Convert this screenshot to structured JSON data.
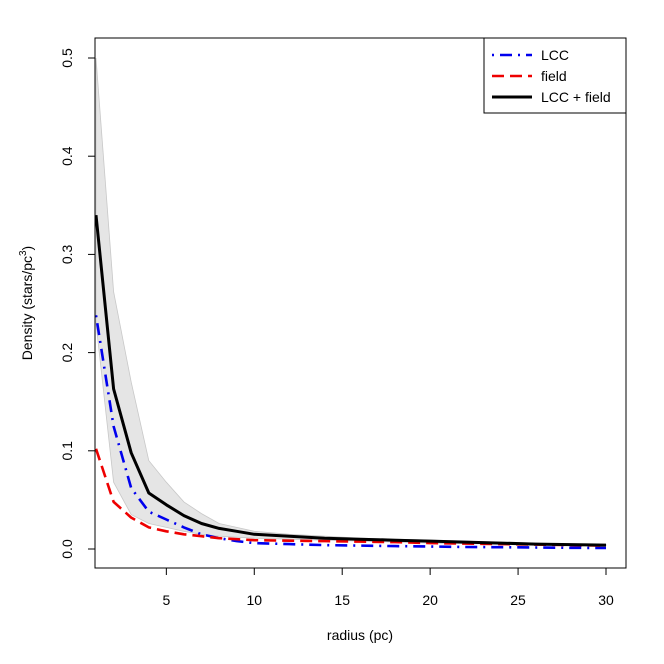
{
  "chart_data": {
    "type": "line",
    "xlabel": "radius (pc)",
    "ylabel_main": "Density (stars/pc",
    "ylabel_sup": "3",
    "ylabel_close": ")",
    "xlim": [
      1,
      30
    ],
    "ylim": [
      0,
      0.5
    ],
    "x_ticks": [
      5,
      10,
      15,
      20,
      25,
      30
    ],
    "y_ticks": [
      0.0,
      0.1,
      0.2,
      0.3,
      0.4,
      0.5
    ],
    "x_tick_labels": [
      "5",
      "10",
      "15",
      "20",
      "25",
      "30"
    ],
    "y_tick_labels": [
      "0.0",
      "0.1",
      "0.2",
      "0.3",
      "0.4",
      "0.5"
    ],
    "grid": false,
    "legend_position": "top-right",
    "series": [
      {
        "name": "LCC",
        "color": "#0000ee",
        "style": "dotdash",
        "x": [
          1,
          2,
          3,
          4,
          5,
          6,
          7,
          8,
          9,
          10,
          12,
          14,
          16,
          18,
          20,
          22,
          24,
          26,
          28,
          30
        ],
        "y": [
          0.238,
          0.125,
          0.062,
          0.038,
          0.03,
          0.022,
          0.015,
          0.011,
          0.008,
          0.006,
          0.005,
          0.004,
          0.0035,
          0.003,
          0.0025,
          0.002,
          0.0018,
          0.0015,
          0.0012,
          0.001
        ]
      },
      {
        "name": "field",
        "color": "#ee0000",
        "style": "dashed",
        "x": [
          1,
          2,
          3,
          4,
          5,
          6,
          7,
          8,
          9,
          10,
          12,
          14,
          16,
          18,
          20,
          22,
          24,
          26,
          28,
          30
        ],
        "y": [
          0.102,
          0.048,
          0.032,
          0.022,
          0.018,
          0.015,
          0.013,
          0.011,
          0.01,
          0.009,
          0.0085,
          0.008,
          0.0075,
          0.007,
          0.006,
          0.0055,
          0.005,
          0.0045,
          0.004,
          0.0035
        ]
      },
      {
        "name": "LCC + field",
        "color": "#000000",
        "style": "solid",
        "x": [
          1,
          2,
          3,
          4,
          5,
          6,
          7,
          8,
          9,
          10,
          12,
          14,
          16,
          18,
          20,
          22,
          24,
          26,
          28,
          30
        ],
        "y": [
          0.34,
          0.163,
          0.098,
          0.057,
          0.045,
          0.034,
          0.026,
          0.021,
          0.018,
          0.015,
          0.013,
          0.011,
          0.01,
          0.009,
          0.008,
          0.007,
          0.006,
          0.005,
          0.0045,
          0.004
        ]
      }
    ],
    "band": {
      "color": "#e5e5e5",
      "x": [
        1,
        2,
        3,
        4,
        5,
        6,
        7,
        8,
        9,
        10,
        12,
        14,
        16,
        18,
        20,
        22,
        24,
        26,
        28,
        30
      ],
      "upper": [
        0.5,
        0.262,
        0.17,
        0.09,
        0.068,
        0.048,
        0.036,
        0.026,
        0.022,
        0.018,
        0.015,
        0.013,
        0.011,
        0.01,
        0.009,
        0.008,
        0.007,
        0.006,
        0.005,
        0.0045
      ],
      "lower": [
        0.23,
        0.068,
        0.035,
        0.026,
        0.022,
        0.018,
        0.015,
        0.013,
        0.012,
        0.011,
        0.01,
        0.009,
        0.008,
        0.007,
        0.006,
        0.0055,
        0.005,
        0.0045,
        0.004,
        0.0035
      ]
    }
  }
}
